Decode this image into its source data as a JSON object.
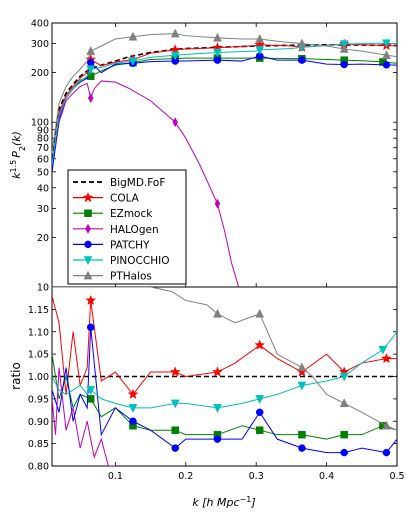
{
  "chart_data": [
    {
      "type": "line",
      "panel": "top",
      "ylabel": "k^{1.5} P_2(k)",
      "yscale": "log",
      "xlim": [
        0.01,
        0.5
      ],
      "ylim": [
        10,
        400
      ],
      "yticks": [
        10,
        20,
        30,
        40,
        50,
        60,
        70,
        80,
        90,
        100,
        200,
        300,
        400
      ],
      "ytick_labels": [
        "10",
        "20",
        "30",
        "40",
        "50",
        "60",
        "70",
        "80",
        "90",
        "100",
        "200",
        "300",
        "400"
      ],
      "legend_position": "lower-left",
      "series": [
        {
          "name": "BigMD.FoF",
          "color": "#000000",
          "style": "dashed",
          "marker": "none",
          "x": [
            0.01,
            0.02,
            0.03,
            0.04,
            0.05,
            0.06,
            0.07,
            0.08,
            0.1,
            0.12,
            0.15,
            0.18,
            0.2,
            0.25,
            0.3,
            0.35,
            0.4,
            0.45,
            0.5
          ],
          "y": [
            60,
            120,
            150,
            170,
            190,
            205,
            215,
            222,
            235,
            250,
            265,
            275,
            280,
            285,
            290,
            293,
            295,
            294,
            292
          ]
        },
        {
          "name": "COLA",
          "color": "#ff0000",
          "style": "solid",
          "marker": "star",
          "x": [
            0.01,
            0.02,
            0.03,
            0.04,
            0.05,
            0.06,
            0.065,
            0.08,
            0.1,
            0.125,
            0.15,
            0.185,
            0.2,
            0.245,
            0.3,
            0.305,
            0.35,
            0.365,
            0.4,
            0.425,
            0.45,
            0.485,
            0.5
          ],
          "y": [
            55,
            115,
            145,
            165,
            185,
            200,
            240,
            220,
            232,
            240,
            262,
            275,
            278,
            283,
            292,
            295,
            290,
            285,
            293,
            298,
            295,
            292,
            290
          ],
          "marker_indices": [
            6,
            9,
            11,
            13,
            15,
            17,
            19,
            21
          ]
        },
        {
          "name": "EZmock",
          "color": "#008000",
          "style": "solid",
          "marker": "square",
          "x": [
            0.01,
            0.02,
            0.03,
            0.04,
            0.05,
            0.065,
            0.08,
            0.1,
            0.125,
            0.15,
            0.185,
            0.2,
            0.245,
            0.3,
            0.305,
            0.35,
            0.365,
            0.4,
            0.425,
            0.45,
            0.48,
            0.5
          ],
          "y": [
            55,
            110,
            140,
            160,
            180,
            190,
            205,
            222,
            230,
            240,
            243,
            245,
            245,
            245,
            245,
            243,
            243,
            240,
            238,
            236,
            232,
            228
          ],
          "marker_indices": [
            5,
            8,
            10,
            12,
            14,
            16,
            18,
            20
          ]
        },
        {
          "name": "HALOgen",
          "color": "#bf00bf",
          "style": "solid",
          "marker": "diamond",
          "x": [
            0.01,
            0.02,
            0.03,
            0.04,
            0.05,
            0.06,
            0.065,
            0.07,
            0.08,
            0.1,
            0.12,
            0.15,
            0.185,
            0.2,
            0.22,
            0.245,
            0.255,
            0.265,
            0.275
          ],
          "y": [
            50,
            100,
            135,
            150,
            165,
            172,
            140,
            160,
            178,
            175,
            160,
            135,
            100,
            80,
            55,
            32,
            22,
            14,
            10
          ],
          "marker_indices": [
            6,
            12,
            15
          ]
        },
        {
          "name": "PATCHY",
          "color": "#0000ff",
          "style": "solid",
          "marker": "circle",
          "x": [
            0.01,
            0.02,
            0.03,
            0.04,
            0.05,
            0.06,
            0.065,
            0.08,
            0.1,
            0.125,
            0.15,
            0.185,
            0.2,
            0.245,
            0.28,
            0.305,
            0.33,
            0.365,
            0.4,
            0.425,
            0.45,
            0.485,
            0.5
          ],
          "y": [
            50,
            105,
            140,
            160,
            175,
            185,
            230,
            200,
            225,
            228,
            233,
            235,
            235,
            238,
            235,
            252,
            238,
            238,
            225,
            224,
            225,
            223,
            222
          ],
          "marker_indices": [
            6,
            9,
            11,
            13,
            15,
            17,
            19,
            21
          ]
        },
        {
          "name": "PINOCCHIO",
          "color": "#00bfbf",
          "style": "solid",
          "marker": "triangle-down",
          "x": [
            0.01,
            0.02,
            0.03,
            0.04,
            0.05,
            0.06,
            0.065,
            0.08,
            0.1,
            0.125,
            0.15,
            0.185,
            0.2,
            0.245,
            0.3,
            0.305,
            0.35,
            0.365,
            0.4,
            0.425,
            0.45,
            0.485,
            0.5
          ],
          "y": [
            55,
            110,
            140,
            160,
            178,
            190,
            210,
            215,
            228,
            235,
            248,
            255,
            258,
            265,
            270,
            275,
            280,
            285,
            292,
            298,
            300,
            302,
            300
          ],
          "marker_indices": [
            6,
            9,
            11,
            13,
            15,
            17,
            19,
            21
          ]
        },
        {
          "name": "PTHalos",
          "color": "#808080",
          "style": "solid",
          "marker": "triangle-up",
          "x": [
            0.01,
            0.02,
            0.03,
            0.04,
            0.05,
            0.06,
            0.065,
            0.08,
            0.1,
            0.125,
            0.15,
            0.185,
            0.2,
            0.245,
            0.28,
            0.305,
            0.33,
            0.365,
            0.4,
            0.425,
            0.45,
            0.485,
            0.5
          ],
          "y": [
            65,
            130,
            165,
            190,
            210,
            235,
            270,
            290,
            320,
            330,
            340,
            345,
            335,
            325,
            320,
            320,
            310,
            300,
            290,
            278,
            270,
            255,
            250
          ],
          "marker_indices": [
            6,
            9,
            11,
            13,
            15,
            17,
            19,
            21
          ]
        }
      ]
    },
    {
      "type": "line",
      "panel": "bottom",
      "xlabel": "k [h Mpc^-1]",
      "ylabel": "ratio",
      "xlim": [
        0.01,
        0.5
      ],
      "ylim": [
        0.8,
        1.2
      ],
      "xticks": [
        0.1,
        0.2,
        0.3,
        0.4,
        0.5
      ],
      "xtick_labels": [
        "0.1",
        "0.2",
        "0.3",
        "0.4",
        "0.5"
      ],
      "yticks": [
        0.8,
        0.85,
        0.9,
        0.95,
        1.0,
        1.05,
        1.1,
        1.15
      ],
      "ytick_labels": [
        "0.80",
        "0.85",
        "0.90",
        "0.95",
        "1.00",
        "1.05",
        "1.10",
        "1.15"
      ],
      "series": [
        {
          "name": "BigMD.FoF",
          "color": "#000000",
          "style": "dashed",
          "marker": "none",
          "x": [
            0.01,
            0.5
          ],
          "y": [
            1.0,
            1.0
          ]
        },
        {
          "name": "COLA",
          "color": "#ff0000",
          "style": "solid",
          "marker": "star",
          "x": [
            0.01,
            0.02,
            0.03,
            0.04,
            0.05,
            0.06,
            0.065,
            0.08,
            0.1,
            0.125,
            0.15,
            0.185,
            0.2,
            0.245,
            0.27,
            0.305,
            0.33,
            0.365,
            0.4,
            0.425,
            0.45,
            0.485,
            0.5
          ],
          "y": [
            1.18,
            1.12,
            0.96,
            1.1,
            0.98,
            1.02,
            1.17,
            0.99,
            1.01,
            0.96,
            1.01,
            1.01,
            1.0,
            1.01,
            1.03,
            1.07,
            1.04,
            1.01,
            1.05,
            1.01,
            1.03,
            1.04,
            1.04
          ],
          "marker_indices": [
            6,
            9,
            11,
            13,
            15,
            17,
            19,
            21
          ]
        },
        {
          "name": "EZmock",
          "color": "#008000",
          "style": "solid",
          "marker": "square",
          "x": [
            0.01,
            0.02,
            0.03,
            0.04,
            0.05,
            0.065,
            0.08,
            0.1,
            0.125,
            0.15,
            0.185,
            0.2,
            0.245,
            0.28,
            0.305,
            0.33,
            0.365,
            0.4,
            0.425,
            0.45,
            0.48,
            0.5
          ],
          "y": [
            1.05,
            0.95,
            1.0,
            0.93,
            0.96,
            0.95,
            0.91,
            0.93,
            0.89,
            0.88,
            0.88,
            0.87,
            0.87,
            0.89,
            0.88,
            0.87,
            0.87,
            0.86,
            0.87,
            0.87,
            0.89,
            0.88
          ],
          "marker_indices": [
            5,
            8,
            10,
            12,
            14,
            16,
            18,
            20
          ]
        },
        {
          "name": "HALOgen",
          "color": "#bf00bf",
          "style": "solid",
          "marker": "diamond",
          "x": [
            0.01,
            0.015,
            0.02,
            0.03,
            0.04,
            0.05,
            0.06,
            0.07,
            0.08,
            0.09,
            0.1
          ],
          "y": [
            0.95,
            0.87,
            1.02,
            0.88,
            0.93,
            0.84,
            0.9,
            0.82,
            0.86,
            0.8,
            0.8
          ],
          "marker_indices": []
        },
        {
          "name": "PATCHY",
          "color": "#0000ff",
          "style": "solid",
          "marker": "circle",
          "x": [
            0.01,
            0.02,
            0.03,
            0.04,
            0.05,
            0.06,
            0.065,
            0.08,
            0.1,
            0.125,
            0.15,
            0.185,
            0.2,
            0.245,
            0.28,
            0.305,
            0.33,
            0.365,
            0.4,
            0.425,
            0.45,
            0.485,
            0.5
          ],
          "y": [
            0.97,
            0.92,
            1.02,
            0.9,
            0.96,
            0.93,
            1.11,
            0.87,
            0.93,
            0.9,
            0.88,
            0.84,
            0.86,
            0.86,
            0.86,
            0.92,
            0.86,
            0.84,
            0.83,
            0.83,
            0.84,
            0.83,
            0.86
          ],
          "marker_indices": [
            6,
            9,
            11,
            13,
            15,
            17,
            19,
            21
          ]
        },
        {
          "name": "PINOCCHIO",
          "color": "#00bfbf",
          "style": "solid",
          "marker": "triangle-down",
          "x": [
            0.01,
            0.02,
            0.03,
            0.04,
            0.05,
            0.06,
            0.065,
            0.08,
            0.1,
            0.125,
            0.15,
            0.185,
            0.2,
            0.245,
            0.28,
            0.305,
            0.33,
            0.365,
            0.4,
            0.425,
            0.45,
            0.48,
            0.5
          ],
          "y": [
            1.0,
            0.97,
            0.96,
            0.97,
            0.98,
            0.96,
            0.97,
            0.95,
            0.94,
            0.93,
            0.93,
            0.94,
            0.94,
            0.93,
            0.94,
            0.95,
            0.96,
            0.98,
            0.99,
            1.0,
            1.03,
            1.06,
            1.1
          ],
          "marker_indices": [
            6,
            9,
            11,
            13,
            15,
            17,
            19,
            21
          ]
        },
        {
          "name": "PTHalos",
          "color": "#808080",
          "style": "solid",
          "marker": "triangle-up",
          "x": [
            0.01,
            0.03,
            0.05,
            0.07,
            0.09,
            0.11,
            0.13,
            0.15,
            0.18,
            0.2,
            0.23,
            0.245,
            0.27,
            0.305,
            0.33,
            0.365,
            0.38,
            0.4,
            0.425,
            0.45,
            0.485,
            0.5
          ],
          "y": [
            1.2,
            1.2,
            1.2,
            1.2,
            1.2,
            1.2,
            1.2,
            1.2,
            1.19,
            1.17,
            1.16,
            1.14,
            1.12,
            1.14,
            1.05,
            1.02,
            1.0,
            0.96,
            0.94,
            0.92,
            0.89,
            0.88
          ],
          "marker_indices": [
            11,
            13,
            15,
            18,
            20
          ]
        }
      ]
    }
  ],
  "legend": {
    "entries": [
      {
        "label": "BigMD.FoF",
        "color": "#000000",
        "style": "dashed",
        "marker": "none"
      },
      {
        "label": "COLA",
        "color": "#ff0000",
        "style": "solid",
        "marker": "star"
      },
      {
        "label": "EZmock",
        "color": "#008000",
        "style": "solid",
        "marker": "square"
      },
      {
        "label": "HALOgen",
        "color": "#bf00bf",
        "style": "solid",
        "marker": "diamond"
      },
      {
        "label": "PATCHY",
        "color": "#0000ff",
        "style": "solid",
        "marker": "circle"
      },
      {
        "label": "PINOCCHIO",
        "color": "#00bfbf",
        "style": "solid",
        "marker": "triangle-down"
      },
      {
        "label": "PTHalos",
        "color": "#808080",
        "style": "solid",
        "marker": "triangle-up"
      }
    ]
  },
  "labels": {
    "top_ylabel_main": "k",
    "top_ylabel_sup": "1.5",
    "top_ylabel_p": "P",
    "top_ylabel_sub": "2",
    "top_ylabel_tail": "(k)",
    "bottom_ylabel": "ratio",
    "xlabel_main": "k [h Mpc",
    "xlabel_sup": "−1",
    "xlabel_tail": "]"
  }
}
